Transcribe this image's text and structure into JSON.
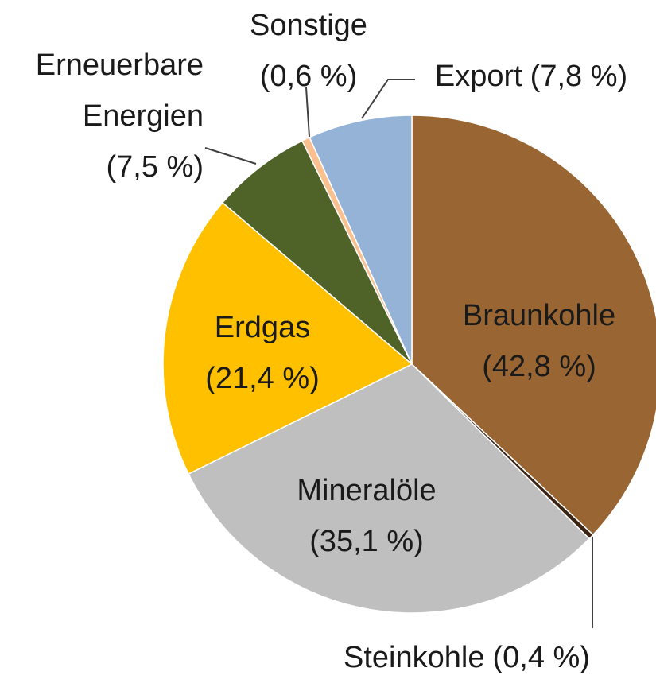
{
  "chart_data": {
    "type": "pie",
    "categories": [
      "Braunkohle",
      "Steinkohle",
      "Mineralöle",
      "Erdgas",
      "Erneuerbare Energien",
      "Sonstige",
      "Export"
    ],
    "values": [
      42.8,
      0.4,
      35.1,
      21.4,
      7.5,
      0.6,
      7.8
    ],
    "value_labels": [
      "(42,8 %)",
      "(0,4 %)",
      "(35,1 %)",
      "(21,4 %)",
      "(7,5 %)",
      "(0,6 %)",
      "(7,8 %)"
    ],
    "colors": [
      "#996633",
      "#3b2414",
      "#bfbfbf",
      "#ffc000",
      "#4f6228",
      "#fac090",
      "#95b3d7"
    ]
  }
}
